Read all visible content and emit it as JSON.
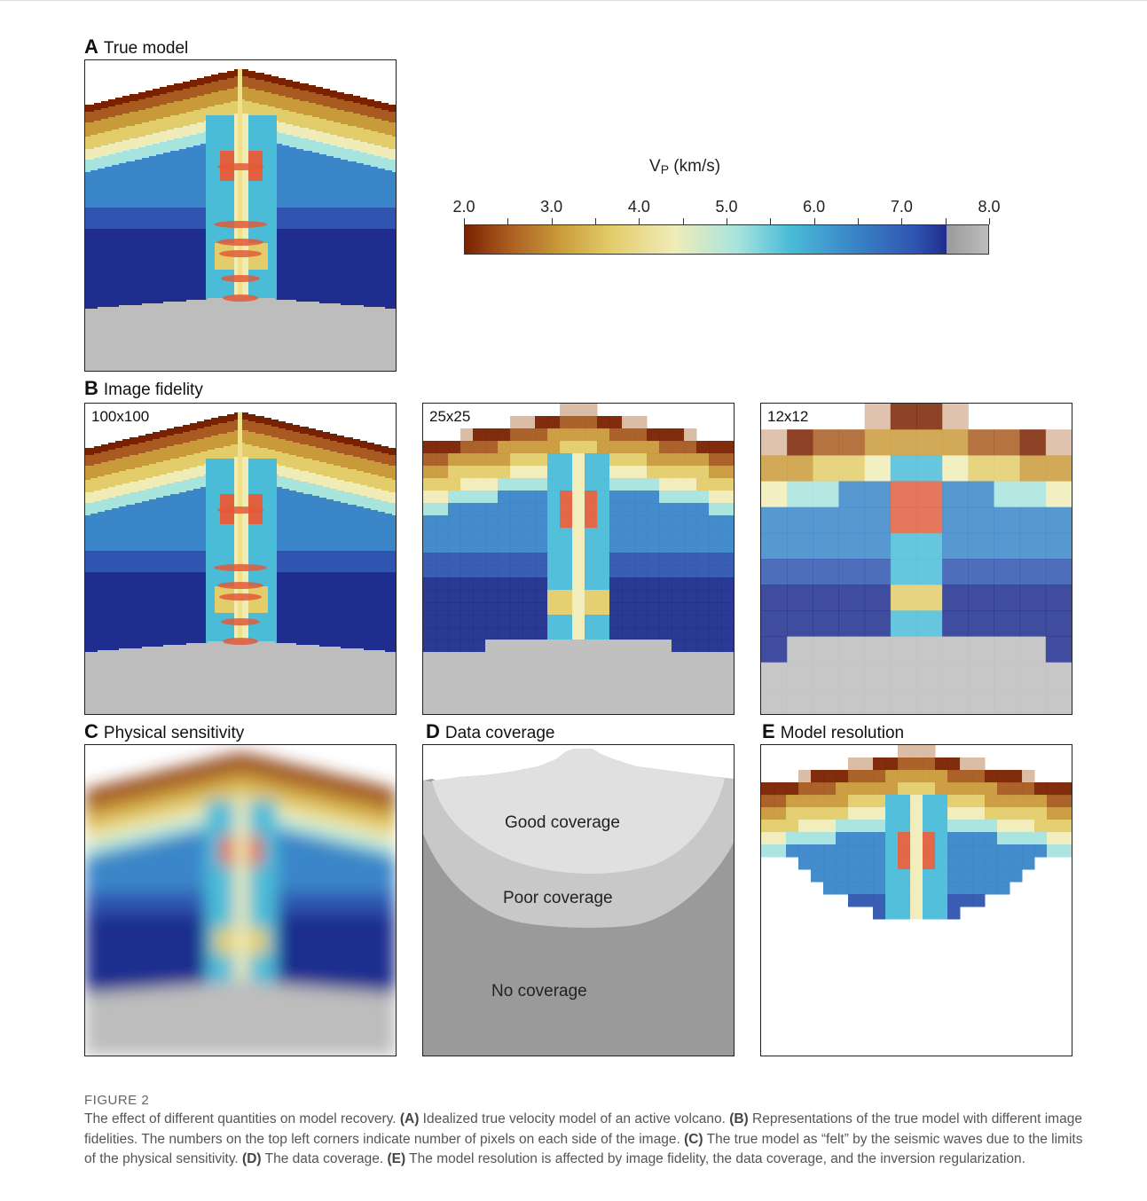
{
  "panels": {
    "A": {
      "letter": "A",
      "title": "True model"
    },
    "B": {
      "letter": "B",
      "title": "Image fidelity"
    },
    "B1": {
      "label": "100x100"
    },
    "B2": {
      "label": "25x25"
    },
    "B3": {
      "label": "12x12"
    },
    "C": {
      "letter": "C",
      "title": "Physical sensitivity"
    },
    "D": {
      "letter": "D",
      "title": "Data coverage",
      "good": "Good coverage",
      "poor": "Poor coverage",
      "none": "No coverage"
    },
    "E": {
      "letter": "E",
      "title": "Model resolution"
    }
  },
  "colorbar": {
    "title_main": "V",
    "title_sub": "P",
    "title_unit": " (km/s)",
    "ticks": [
      "2.0",
      "3.0",
      "4.0",
      "5.0",
      "6.0",
      "7.0",
      "8.0"
    ],
    "range": [
      2.0,
      8.0
    ],
    "colors": [
      "#7a2200",
      "#c99a3a",
      "#f0ecb8",
      "#4bbcd8",
      "#2f55b0",
      "#1f2e8e",
      "#bdbdbd"
    ]
  },
  "figure": {
    "number": "FIGURE 2",
    "caption": [
      {
        "b": "",
        "t": "The effect of different quantities on model recovery. "
      },
      {
        "b": "(A)",
        "t": " Idealized true velocity model of an active volcano. "
      },
      {
        "b": "(B)",
        "t": " Representations of the true model with different image fidelities. The numbers on the top left corners indicate number of pixels on each side of the image. "
      },
      {
        "b": "(C)",
        "t": " The true model as “felt” by the seismic waves due to the limits of the physical sensitivity. "
      },
      {
        "b": "(D)",
        "t": " The data coverage. "
      },
      {
        "b": "(E)",
        "t": " The model resolution is affected by image fidelity, the data coverage, and the inversion regularization."
      }
    ]
  }
}
